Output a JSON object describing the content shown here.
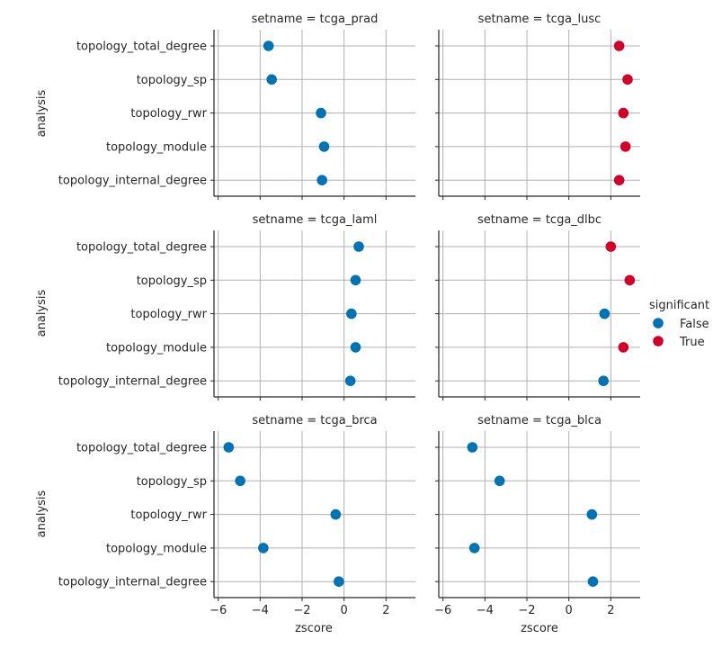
{
  "chart_data": {
    "type": "scatter",
    "layout": "facet-grid 3 rows x 2 cols, shared axes",
    "xlabel": "zscore",
    "ylabel": "analysis",
    "xlim": [
      -6.2,
      3.4
    ],
    "xticks": [
      -6,
      -4,
      -2,
      0,
      2
    ],
    "xtick_labels": [
      "−6",
      "−4",
      "−2",
      "0",
      "2"
    ],
    "grid": true,
    "categories": [
      "topology_total_degree",
      "topology_sp",
      "topology_rwr",
      "topology_module",
      "topology_internal_degree"
    ],
    "legend": {
      "title": "significant",
      "placement": "right",
      "entries": [
        {
          "label": "False",
          "color": "#0173b2"
        },
        {
          "label": "True",
          "color": "#d1002b"
        }
      ]
    },
    "panels": [
      {
        "title": "setname = tcga_prad",
        "values": [
          -3.6,
          -3.45,
          -1.1,
          -0.95,
          -1.05
        ],
        "significant": [
          false,
          false,
          false,
          false,
          false
        ]
      },
      {
        "title": "setname = tcga_lusc",
        "values": [
          2.4,
          2.8,
          2.6,
          2.7,
          2.4
        ],
        "significant": [
          true,
          true,
          true,
          true,
          true
        ]
      },
      {
        "title": "setname = tcga_laml",
        "values": [
          0.7,
          0.55,
          0.35,
          0.55,
          0.3
        ],
        "significant": [
          false,
          false,
          false,
          false,
          false
        ]
      },
      {
        "title": "setname = tcga_dlbc",
        "values": [
          2.0,
          2.9,
          1.7,
          2.6,
          1.65
        ],
        "significant": [
          true,
          true,
          false,
          true,
          false
        ]
      },
      {
        "title": "setname = tcga_brca",
        "values": [
          -5.5,
          -4.95,
          -0.4,
          -3.85,
          -0.25
        ],
        "significant": [
          false,
          false,
          false,
          false,
          false
        ]
      },
      {
        "title": "setname = tcga_blca",
        "values": [
          -4.6,
          -3.3,
          1.1,
          -4.5,
          1.15
        ],
        "significant": [
          false,
          false,
          false,
          false,
          false
        ]
      }
    ]
  }
}
